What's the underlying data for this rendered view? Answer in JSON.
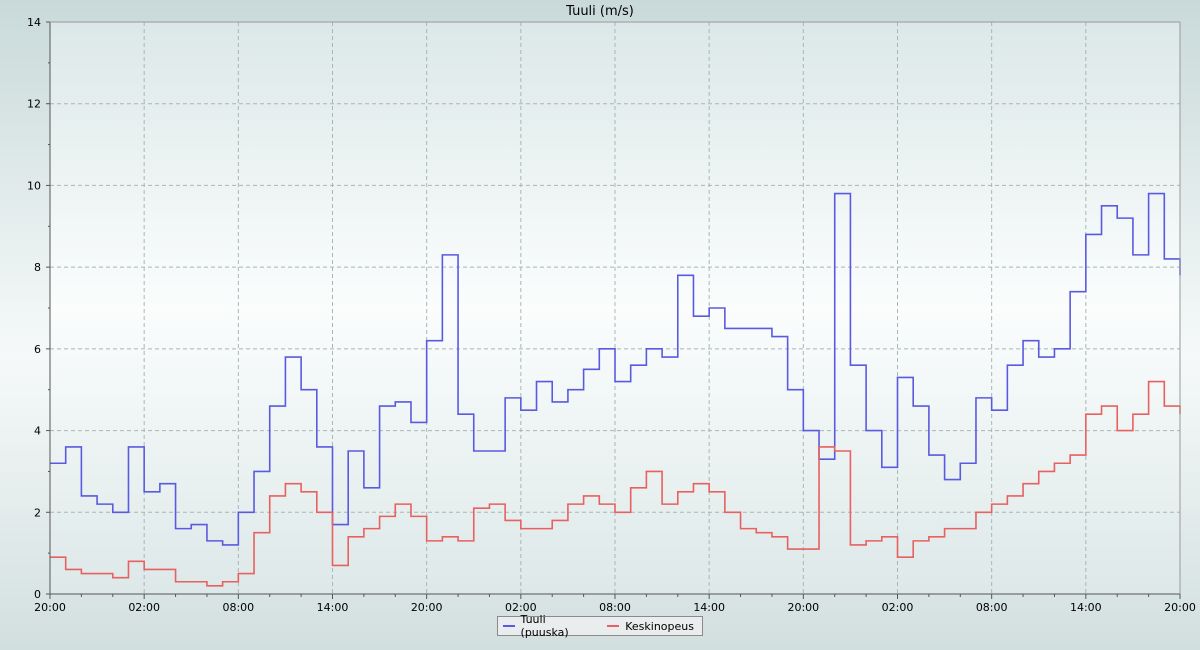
{
  "chart_data": {
    "type": "line",
    "title": "Tuuli (m/s)",
    "xlabel": "",
    "ylabel": "",
    "ylim": [
      0,
      14
    ],
    "yticks": [
      0,
      2,
      4,
      6,
      8,
      10,
      12,
      14
    ],
    "xlim": [
      0,
      72
    ],
    "xticks": [
      {
        "x": 0,
        "label": "20:00"
      },
      {
        "x": 6,
        "label": "02:00"
      },
      {
        "x": 12,
        "label": "08:00"
      },
      {
        "x": 18,
        "label": "14:00"
      },
      {
        "x": 24,
        "label": "20:00"
      },
      {
        "x": 30,
        "label": "02:00"
      },
      {
        "x": 36,
        "label": "08:00"
      },
      {
        "x": 42,
        "label": "14:00"
      },
      {
        "x": 48,
        "label": "20:00"
      },
      {
        "x": 54,
        "label": "02:00"
      },
      {
        "x": 60,
        "label": "08:00"
      },
      {
        "x": 66,
        "label": "14:00"
      },
      {
        "x": 72,
        "label": "20:00"
      }
    ],
    "grid": true,
    "legend_position": "bottom-center",
    "series": [
      {
        "name": "Tuuli (puuska)",
        "color": "#5a5ae0",
        "x": [
          0,
          1,
          2,
          3,
          4,
          5,
          6,
          7,
          8,
          9,
          10,
          11,
          12,
          13,
          14,
          15,
          16,
          17,
          18,
          19,
          20,
          21,
          22,
          23,
          24,
          25,
          26,
          27,
          28,
          29,
          30,
          31,
          32,
          33,
          34,
          35,
          36,
          37,
          38,
          39,
          40,
          41,
          42,
          43,
          44,
          45,
          46,
          47,
          48,
          49,
          50,
          51,
          52,
          53,
          54,
          55,
          56,
          57,
          58,
          59,
          60,
          61,
          62,
          63,
          64,
          65,
          66,
          67,
          68,
          69,
          70,
          71,
          72
        ],
        "values": [
          3.2,
          3.6,
          2.4,
          2.2,
          2.0,
          3.6,
          2.5,
          2.7,
          1.6,
          1.7,
          1.3,
          1.2,
          2.0,
          3.0,
          4.6,
          5.8,
          5.0,
          3.6,
          1.7,
          3.5,
          2.6,
          4.6,
          4.7,
          4.2,
          6.2,
          8.3,
          4.4,
          3.5,
          3.5,
          4.8,
          4.5,
          5.2,
          4.7,
          5.0,
          5.5,
          6.0,
          5.2,
          5.6,
          6.0,
          5.8,
          7.8,
          6.8,
          7.0,
          6.5,
          6.5,
          6.5,
          6.3,
          5.0,
          4.0,
          3.3,
          9.8,
          5.6,
          4.0,
          3.1,
          5.3,
          4.6,
          3.4,
          2.8,
          3.2,
          4.8,
          4.5,
          5.6,
          6.2,
          5.8,
          6.0,
          7.4,
          8.8,
          9.5,
          9.2,
          8.3,
          9.8,
          8.2,
          7.8
        ]
      },
      {
        "name": "Keskinopeus",
        "color": "#e86060",
        "x": [
          0,
          1,
          2,
          3,
          4,
          5,
          6,
          7,
          8,
          9,
          10,
          11,
          12,
          13,
          14,
          15,
          16,
          17,
          18,
          19,
          20,
          21,
          22,
          23,
          24,
          25,
          26,
          27,
          28,
          29,
          30,
          31,
          32,
          33,
          34,
          35,
          36,
          37,
          38,
          39,
          40,
          41,
          42,
          43,
          44,
          45,
          46,
          47,
          48,
          49,
          50,
          51,
          52,
          53,
          54,
          55,
          56,
          57,
          58,
          59,
          60,
          61,
          62,
          63,
          64,
          65,
          66,
          67,
          68,
          69,
          70,
          71,
          72
        ],
        "values": [
          0.9,
          0.6,
          0.5,
          0.5,
          0.4,
          0.8,
          0.6,
          0.6,
          0.3,
          0.3,
          0.2,
          0.3,
          0.5,
          1.5,
          2.4,
          2.7,
          2.5,
          2.0,
          0.7,
          1.4,
          1.6,
          1.9,
          2.2,
          1.9,
          1.3,
          1.4,
          1.3,
          2.1,
          2.2,
          1.8,
          1.6,
          1.6,
          1.8,
          2.2,
          2.4,
          2.2,
          2.0,
          2.6,
          3.0,
          2.2,
          2.5,
          2.7,
          2.5,
          2.0,
          1.6,
          1.5,
          1.4,
          1.1,
          1.1,
          3.6,
          3.5,
          1.2,
          1.3,
          1.4,
          0.9,
          1.3,
          1.4,
          1.6,
          1.6,
          2.0,
          2.2,
          2.4,
          2.7,
          3.0,
          3.2,
          3.4,
          4.4,
          4.6,
          4.0,
          4.4,
          5.2,
          4.6,
          4.4
        ]
      }
    ]
  },
  "legend": {
    "items": [
      {
        "label": "Tuuli (puuska)",
        "color": "#5a5ae0"
      },
      {
        "label": "Keskinopeus",
        "color": "#e86060"
      }
    ]
  }
}
